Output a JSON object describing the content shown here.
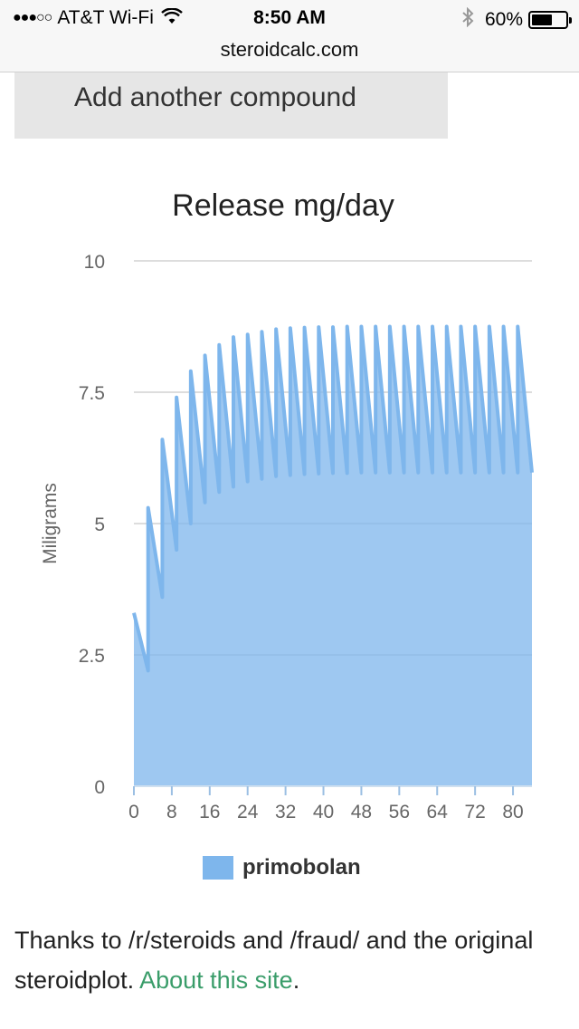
{
  "status_bar": {
    "signal": "●●●○○",
    "carrier": "AT&T Wi-Fi",
    "wifi_icon": "wifi-icon",
    "time": "8:50 AM",
    "bluetooth_icon": "bluetooth-icon",
    "battery_percent": "60%",
    "battery_level": 0.6
  },
  "url_bar": {
    "url": "steroidcalc.com"
  },
  "add_button": {
    "label": "Add another compound"
  },
  "chart": {
    "title": "Release mg/day"
  },
  "chart_data": {
    "type": "area",
    "title": "Release mg/day",
    "xlabel": "",
    "ylabel": "Miligrams",
    "xlim": [
      0,
      84
    ],
    "ylim": [
      0,
      10
    ],
    "x_ticks": [
      0,
      8,
      16,
      24,
      32,
      40,
      48,
      56,
      64,
      72,
      80
    ],
    "y_ticks": [
      0,
      2.5,
      5,
      7.5,
      10
    ],
    "y_tick_labels": [
      "0",
      "2.5",
      "5",
      "7.5",
      "10"
    ],
    "grid": true,
    "legend_position": "bottom",
    "series": [
      {
        "name": "primobolan",
        "color": "#7eb6ec",
        "x": [
          0,
          3,
          3,
          6,
          6,
          9,
          9,
          12,
          12,
          15,
          15,
          18,
          18,
          21,
          21,
          24,
          24,
          27,
          27,
          30,
          30,
          33,
          33,
          36,
          36,
          39,
          39,
          42,
          42,
          45,
          45,
          48,
          48,
          51,
          51,
          54,
          54,
          57,
          57,
          60,
          60,
          63,
          63,
          66,
          66,
          69,
          69,
          72,
          72,
          75,
          75,
          78,
          78,
          81,
          81,
          84
        ],
        "values": [
          3.3,
          2.2,
          5.3,
          3.6,
          6.6,
          4.5,
          7.4,
          5.0,
          7.9,
          5.4,
          8.2,
          5.6,
          8.4,
          5.7,
          8.55,
          5.8,
          8.6,
          5.85,
          8.65,
          5.9,
          8.7,
          5.92,
          8.72,
          5.94,
          8.73,
          5.95,
          8.74,
          5.96,
          8.74,
          5.96,
          8.75,
          5.97,
          8.75,
          5.97,
          8.75,
          5.97,
          8.75,
          5.97,
          8.75,
          5.97,
          8.75,
          5.97,
          8.75,
          5.97,
          8.75,
          5.97,
          8.75,
          5.97,
          8.75,
          5.97,
          8.75,
          5.97,
          8.75,
          5.97,
          8.75,
          5.97
        ]
      }
    ]
  },
  "footer": {
    "text": "Thanks to /r/steroids and /fraud/ and the original steroidplot. ",
    "link": "About this site",
    "end": "."
  }
}
